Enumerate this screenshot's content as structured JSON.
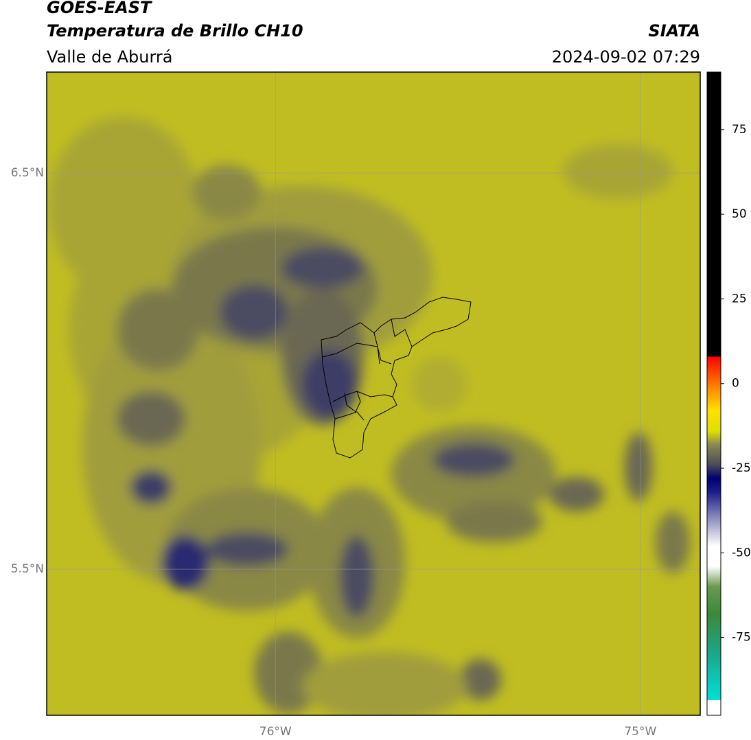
{
  "map": {
    "title": "GOES-EAST",
    "subtitle": "Temperatura de Brillo CH10",
    "region": "Valle de Aburrá",
    "source": "SIATA",
    "datetime": "2024-09-02 07:29",
    "xlim": [
      -76.627,
      -74.836
    ],
    "ylim": [
      5.131,
      6.755
    ],
    "xticks": [
      {
        "value": -76,
        "label": "76°W"
      },
      {
        "value": -75,
        "label": "75°W"
      }
    ],
    "yticks": [
      {
        "value": 6.5,
        "label": "6.5°N"
      },
      {
        "value": 5.5,
        "label": "5.5°N"
      }
    ],
    "grid": true,
    "colorbar": {
      "lim": [
        -98,
        92
      ],
      "ticks": [
        75,
        50,
        25,
        0,
        -25,
        -50,
        -75
      ],
      "stops": [
        {
          "value": -98,
          "color": "#ffffff"
        },
        {
          "value": -93.5,
          "color": "#ffffff"
        },
        {
          "value": -93.5,
          "color": "#00e0d8"
        },
        {
          "value": -80,
          "color": "#1aa88a"
        },
        {
          "value": -68,
          "color": "#3a8a3a"
        },
        {
          "value": -60,
          "color": "#6a9a50"
        },
        {
          "value": -54,
          "color": "#ffffff"
        },
        {
          "value": -48,
          "color": "#ffffff"
        },
        {
          "value": -40,
          "color": "#9090c0"
        },
        {
          "value": -32,
          "color": "#1c1c8a"
        },
        {
          "value": -28,
          "color": "#000070"
        },
        {
          "value": -24,
          "color": "#4a4a5a"
        },
        {
          "value": -18,
          "color": "#8a8a50"
        },
        {
          "value": -14,
          "color": "#e0e000"
        },
        {
          "value": -8,
          "color": "#ffe000"
        },
        {
          "value": -2,
          "color": "#ff9000"
        },
        {
          "value": 8,
          "color": "#ff0000"
        },
        {
          "value": 8,
          "color": "#000000"
        },
        {
          "value": 92,
          "color": "#000000"
        }
      ]
    }
  }
}
